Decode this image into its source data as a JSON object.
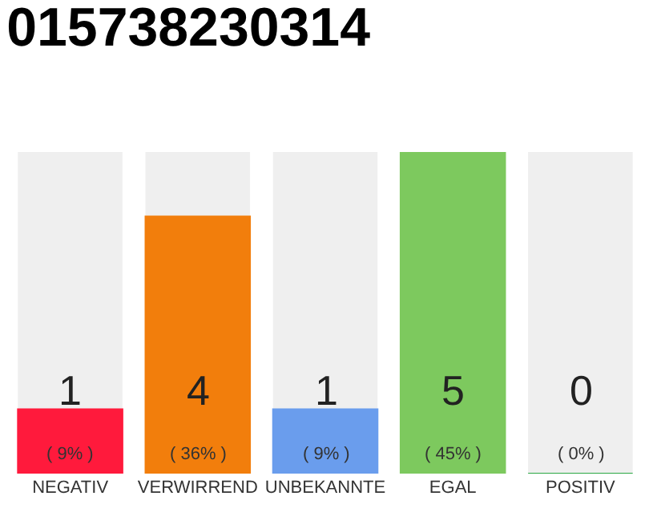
{
  "chart_data": {
    "type": "bar",
    "title": "015738230314",
    "categories": [
      "NEGATIV",
      "VERWIRREND",
      "UNBEKANNTE",
      "EGAL",
      "POSITIV"
    ],
    "values": [
      1,
      4,
      1,
      5,
      0
    ],
    "colors": [
      "#ff1a3c",
      "#f27e0c",
      "#6a9ded",
      "#7dc95e",
      "#2aa844"
    ],
    "value_labels": [
      "1\n( 9% )",
      "4\n( 36% )",
      "1\n( 9% )",
      "5\n( 45% )",
      "0\n( 0% )"
    ],
    "grid": false,
    "legend": false
  }
}
